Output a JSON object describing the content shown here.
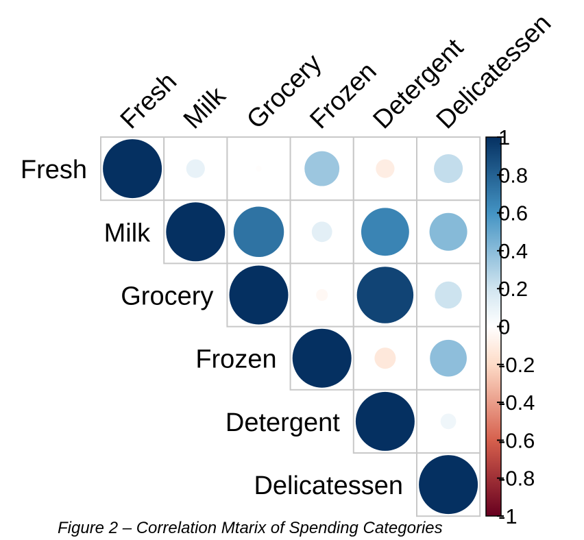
{
  "caption": "Figure 2 – Correlation Mtarix of Spending Categories",
  "chart_data": {
    "type": "heatmap",
    "style": "circle-correlation-upper",
    "variables": [
      "Fresh",
      "Milk",
      "Grocery",
      "Frozen",
      "Detergent",
      "Delicatessen"
    ],
    "matrix": [
      [
        1.0,
        0.1,
        -0.01,
        0.35,
        -0.1,
        0.24
      ],
      [
        0.1,
        1.0,
        0.73,
        0.12,
        0.66,
        0.41
      ],
      [
        -0.01,
        0.73,
        1.0,
        -0.04,
        0.92,
        0.21
      ],
      [
        0.35,
        0.12,
        -0.04,
        1.0,
        -0.13,
        0.39
      ],
      [
        -0.1,
        0.66,
        0.92,
        -0.13,
        1.0,
        0.07
      ],
      [
        0.24,
        0.41,
        0.21,
        0.39,
        0.07,
        1.0
      ]
    ],
    "colorbar": {
      "ticks": [
        "1",
        "0.8",
        "0.6",
        "0.4",
        "0.2",
        "0",
        "-0.2",
        "-0.4",
        "-0.6",
        "-0.8",
        "-1"
      ],
      "range": [
        -1,
        1
      ],
      "colors": {
        "neg_strong": "#67001f",
        "neg_mid": "#d6604d",
        "neg_light": "#fddbc7",
        "zero": "#ffffff",
        "pos_light": "#d1e5f0",
        "pos_mid": "#4393c3",
        "pos_strong": "#053061"
      }
    }
  }
}
